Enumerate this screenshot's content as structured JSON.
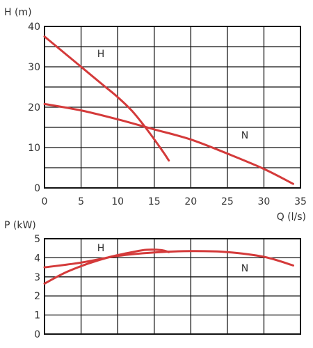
{
  "chart_data": [
    {
      "type": "line",
      "ylabel": "H (m)",
      "xlabel": "Q (l/s)",
      "xlim": [
        0,
        35
      ],
      "ylim": [
        0,
        40
      ],
      "x_ticks": [
        "0",
        "5",
        "10",
        "15",
        "20",
        "25",
        "30",
        "35"
      ],
      "y_ticks": [
        "0",
        "10",
        "20",
        "30",
        "40"
      ],
      "grid": true,
      "series": [
        {
          "name": "H",
          "color": "#d43a3a",
          "points": [
            [
              0,
              37.5
            ],
            [
              2,
              34.5
            ],
            [
              5,
              30
            ],
            [
              8,
              25.5
            ],
            [
              10,
              22.5
            ],
            [
              12,
              19
            ],
            [
              14,
              14.5
            ],
            [
              16,
              9.5
            ],
            [
              17,
              6.8
            ]
          ]
        },
        {
          "name": "N",
          "color": "#d43a3a",
          "points": [
            [
              0,
              20.8
            ],
            [
              5,
              19.2
            ],
            [
              10,
              17
            ],
            [
              15,
              14.5
            ],
            [
              20,
              12
            ],
            [
              25,
              8.5
            ],
            [
              30,
              4.7
            ],
            [
              34,
              1
            ]
          ]
        }
      ]
    },
    {
      "type": "line",
      "ylabel": "P (kW)",
      "xlabel": "",
      "xlim": [
        0,
        35
      ],
      "ylim": [
        0,
        5
      ],
      "y_ticks": [
        "0",
        "1",
        "2",
        "3",
        "4",
        "5"
      ],
      "grid": true,
      "series": [
        {
          "name": "H",
          "color": "#d43a3a",
          "points": [
            [
              0,
              2.65
            ],
            [
              3,
              3.25
            ],
            [
              6,
              3.7
            ],
            [
              9,
              4.05
            ],
            [
              12,
              4.3
            ],
            [
              14,
              4.42
            ],
            [
              16,
              4.4
            ],
            [
              17,
              4.3
            ]
          ]
        },
        {
          "name": "N",
          "color": "#d43a3a",
          "points": [
            [
              0,
              3.5
            ],
            [
              5,
              3.75
            ],
            [
              10,
              4.1
            ],
            [
              15,
              4.28
            ],
            [
              20,
              4.35
            ],
            [
              25,
              4.3
            ],
            [
              30,
              4.05
            ],
            [
              34,
              3.6
            ]
          ]
        }
      ]
    }
  ]
}
